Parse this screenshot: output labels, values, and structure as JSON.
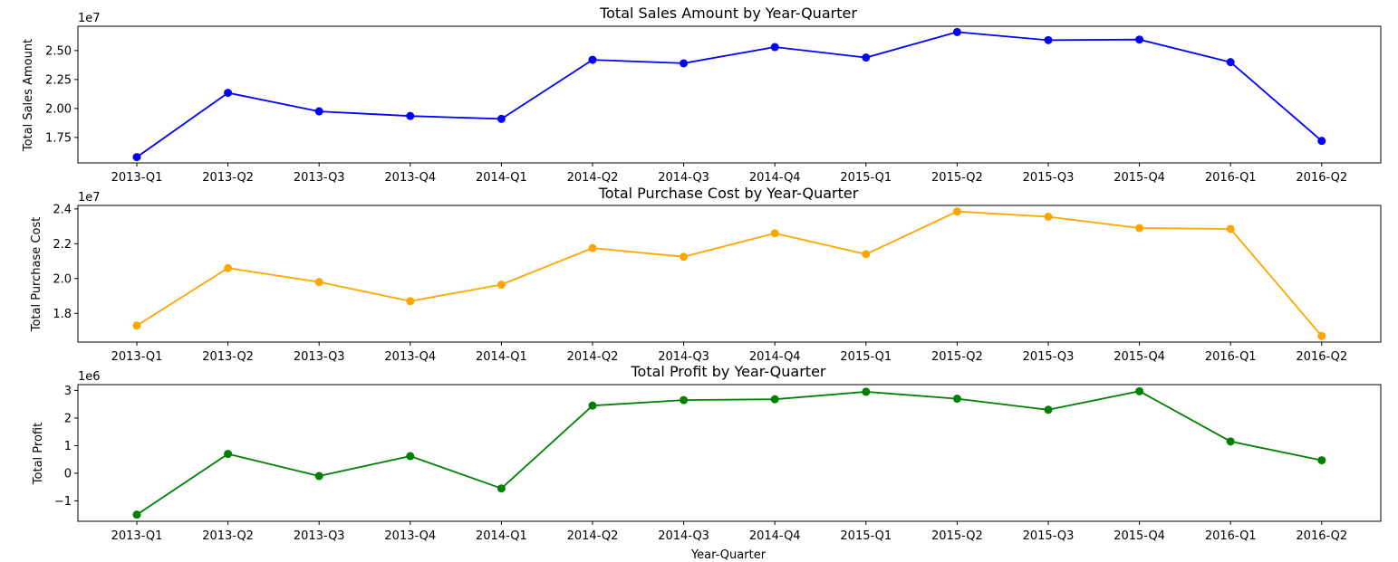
{
  "chart_data": [
    {
      "type": "line",
      "title": "Total Sales Amount by Year-Quarter",
      "xlabel": "",
      "ylabel": "Total Sales Amount",
      "offset_label": "1e7",
      "categories": [
        "2013-Q1",
        "2013-Q2",
        "2013-Q3",
        "2013-Q4",
        "2014-Q1",
        "2014-Q2",
        "2014-Q3",
        "2014-Q4",
        "2015-Q1",
        "2015-Q2",
        "2015-Q3",
        "2015-Q4",
        "2016-Q1",
        "2016-Q2"
      ],
      "values": [
        15800000,
        21350000,
        19750000,
        19350000,
        19100000,
        24200000,
        23900000,
        25300000,
        24400000,
        26600000,
        25900000,
        25950000,
        24000000,
        17200000
      ],
      "ylim": [
        15300000,
        27100000
      ],
      "yticks": [
        17500000,
        20000000,
        22500000,
        25000000
      ],
      "ytick_labels": [
        "1.75",
        "2.00",
        "2.25",
        "2.50"
      ],
      "color": "#0000ff",
      "grid": false
    },
    {
      "type": "line",
      "title": "Total Purchase Cost by Year-Quarter",
      "xlabel": "",
      "ylabel": "Total Purchase Cost",
      "offset_label": "1e7",
      "categories": [
        "2013-Q1",
        "2013-Q2",
        "2013-Q3",
        "2013-Q4",
        "2014-Q1",
        "2014-Q2",
        "2014-Q3",
        "2014-Q4",
        "2015-Q1",
        "2015-Q2",
        "2015-Q3",
        "2015-Q4",
        "2016-Q1",
        "2016-Q2"
      ],
      "values": [
        17300000,
        20600000,
        19800000,
        18700000,
        19650000,
        21750000,
        21250000,
        22600000,
        21400000,
        23850000,
        23550000,
        22900000,
        22850000,
        16700000
      ],
      "ylim": [
        16350000,
        24200000
      ],
      "yticks": [
        18000000,
        20000000,
        22000000,
        24000000
      ],
      "ytick_labels": [
        "1.8",
        "2.0",
        "2.2",
        "2.4"
      ],
      "color": "#ffa500",
      "grid": false
    },
    {
      "type": "line",
      "title": "Total Profit by Year-Quarter",
      "xlabel": "Year-Quarter",
      "ylabel": "Total Profit",
      "offset_label": "1e6",
      "categories": [
        "2013-Q1",
        "2013-Q2",
        "2013-Q3",
        "2013-Q4",
        "2014-Q1",
        "2014-Q2",
        "2014-Q3",
        "2014-Q4",
        "2015-Q1",
        "2015-Q2",
        "2015-Q3",
        "2015-Q4",
        "2016-Q1",
        "2016-Q2"
      ],
      "values": [
        -1500000,
        700000,
        -100000,
        620000,
        -550000,
        2450000,
        2650000,
        2680000,
        2950000,
        2700000,
        2300000,
        2970000,
        1150000,
        470000
      ],
      "ylim": [
        -1740000,
        3210000
      ],
      "yticks": [
        -1000000,
        0,
        1000000,
        2000000,
        3000000
      ],
      "ytick_labels": [
        "−1",
        "0",
        "1",
        "2",
        "3"
      ],
      "color": "#008000",
      "grid": false
    }
  ]
}
